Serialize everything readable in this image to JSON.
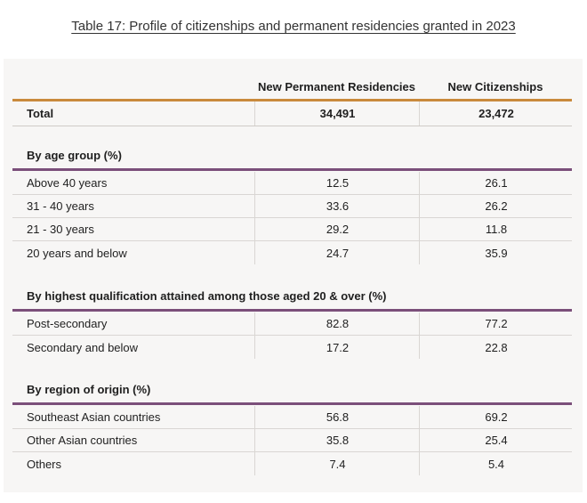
{
  "caption": "Table 17: Profile of citizenships and permanent residencies granted in 2023",
  "columns": {
    "pr": "New Permanent Residencies",
    "cit": "New Citizenships"
  },
  "total": {
    "label": "Total",
    "pr": "34,491",
    "cit": "23,472"
  },
  "age": {
    "title": "By age group (%)",
    "rows": [
      {
        "label": "Above 40 years",
        "pr": "12.5",
        "cit": "26.1"
      },
      {
        "label": "31 - 40 years",
        "pr": "33.6",
        "cit": "26.2"
      },
      {
        "label": "21 - 30 years",
        "pr": "29.2",
        "cit": "11.8"
      },
      {
        "label": "20 years and below",
        "pr": "24.7",
        "cit": "35.9"
      }
    ]
  },
  "qualification": {
    "title": "By highest qualification attained among those aged 20 & over (%)",
    "rows": [
      {
        "label": "Post-secondary",
        "pr": "82.8",
        "cit": "77.2"
      },
      {
        "label": "Secondary and below",
        "pr": "17.2",
        "cit": "22.8"
      }
    ]
  },
  "region": {
    "title": "By region of origin (%)",
    "rows": [
      {
        "label": "Southeast Asian countries",
        "pr": "56.8",
        "cit": "69.2"
      },
      {
        "label": "Other Asian countries",
        "pr": "35.8",
        "cit": "25.4"
      },
      {
        "label": "Others",
        "pr": "7.4",
        "cit": "5.4"
      }
    ]
  },
  "colors": {
    "header_rule": "#c98a3c",
    "section_rule": "#7b4f7a",
    "panel": "#f7f6f5"
  }
}
